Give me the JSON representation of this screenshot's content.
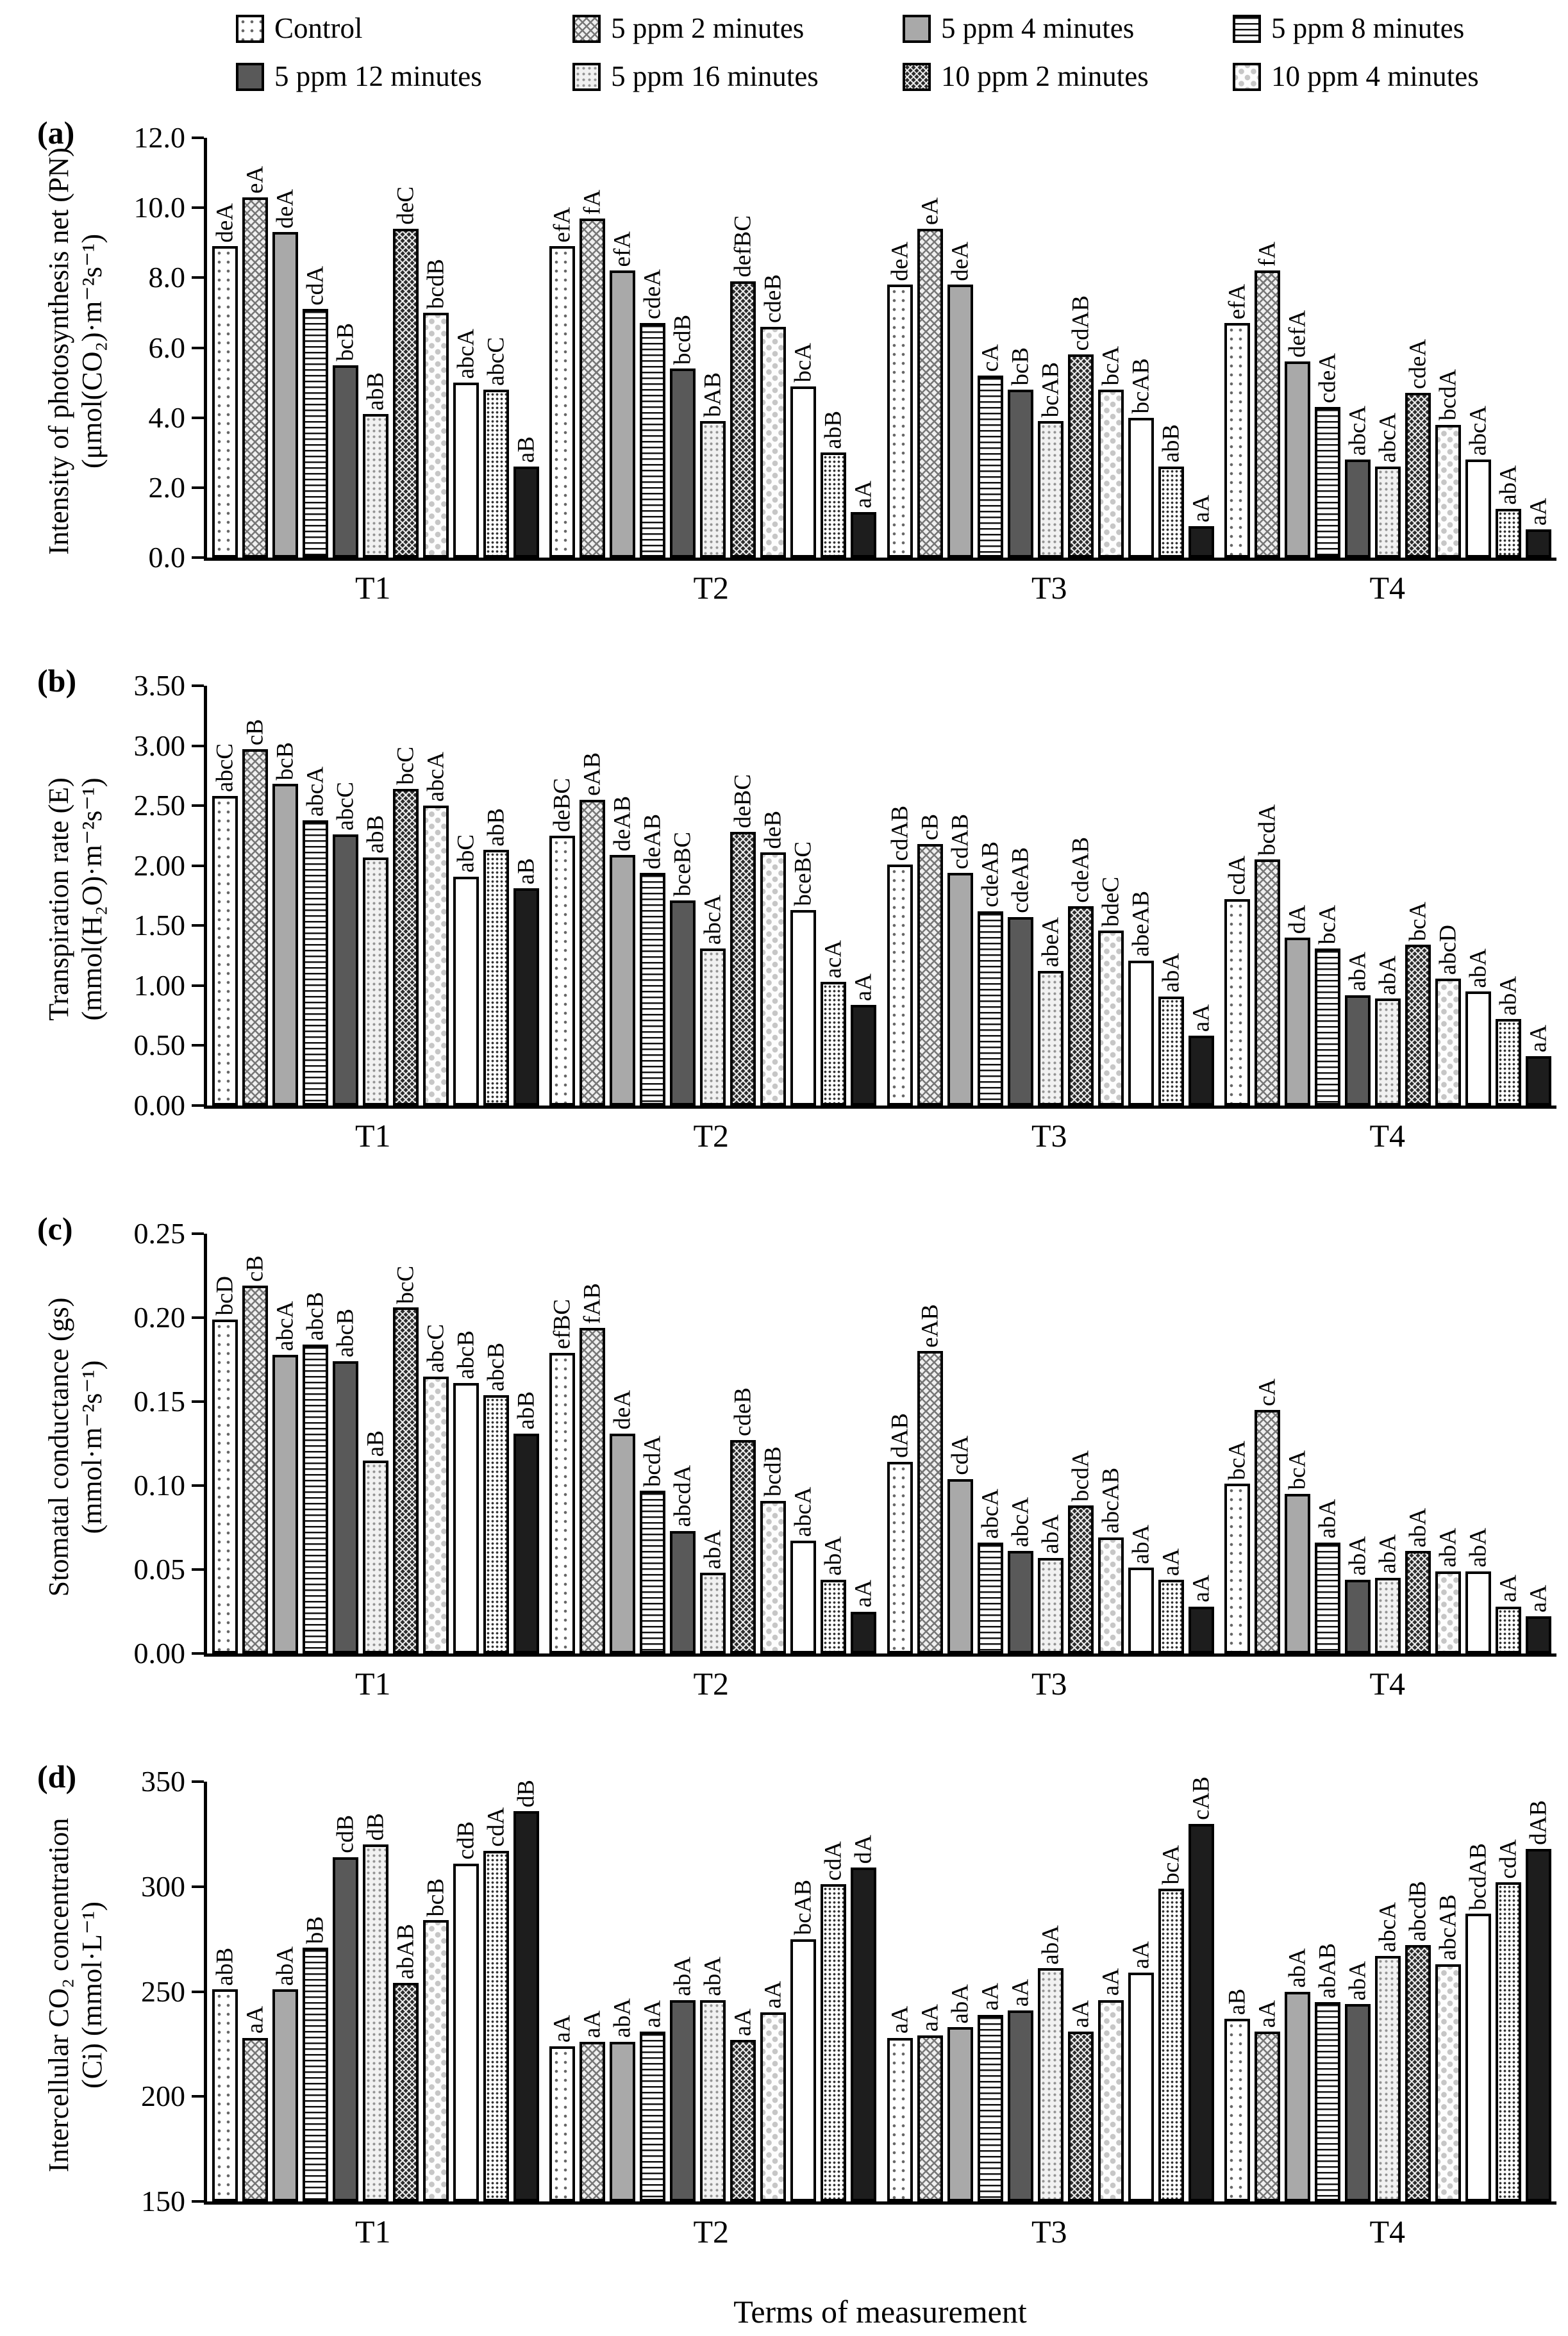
{
  "xlabel": "Terms of measurement",
  "colors": {
    "ink": "#000000",
    "background": "#ffffff"
  },
  "legend": {
    "items": [
      {
        "label": "Control",
        "pattern": "dots-sparse"
      },
      {
        "label": "5 ppm 2 minutes",
        "pattern": "crosshatch-light"
      },
      {
        "label": "5 ppm 4 minutes",
        "pattern": "solid-gray"
      },
      {
        "label": "5 ppm 8 minutes",
        "pattern": "hlines"
      },
      {
        "label": "5 ppm 12 minutes",
        "pattern": "solid-darkgray"
      },
      {
        "label": "5 ppm 16 minutes",
        "pattern": "dots-fine"
      },
      {
        "label": "10 ppm 2 minutes",
        "pattern": "crosshatch-dark"
      },
      {
        "label": "10 ppm 4 minutes",
        "pattern": "check-light"
      }
    ]
  },
  "series_defs": [
    {
      "name": "Control",
      "pattern": "dots-sparse"
    },
    {
      "name": "5 ppm 2 minutes",
      "pattern": "crosshatch-light"
    },
    {
      "name": "5 ppm 4 minutes",
      "pattern": "solid-gray"
    },
    {
      "name": "5 ppm 8 minutes",
      "pattern": "hlines"
    },
    {
      "name": "5 ppm 12 minutes",
      "pattern": "solid-darkgray"
    },
    {
      "name": "5 ppm 16 minutes",
      "pattern": "dots-fine"
    },
    {
      "name": "10 ppm 2 minutes",
      "pattern": "crosshatch-dark"
    },
    {
      "name": "10 ppm 4 minutes",
      "pattern": "check-light"
    },
    {
      "name": "",
      "pattern": "plain-white"
    },
    {
      "name": "",
      "pattern": "speckle"
    },
    {
      "name": "",
      "pattern": "solid-black"
    }
  ],
  "chart_data": [
    {
      "type": "bar",
      "panel": "(a)",
      "title": "Intensity of photosynthesis net (PN)",
      "unit": "(μmol(CO₂)·m⁻²s⁻¹)",
      "categories": [
        "T1",
        "T2",
        "T3",
        "T4"
      ],
      "ylim": [
        0,
        12
      ],
      "yticks": [
        "12.0",
        "10.0",
        "8.0",
        "6.0",
        "4.0",
        "2.0",
        "0.0"
      ],
      "series": [
        {
          "name": "Control",
          "values": [
            8.9,
            8.9,
            7.8,
            6.7
          ],
          "sig": [
            "deA",
            "efA",
            "deA",
            "efA"
          ]
        },
        {
          "name": "5 ppm 2 minutes",
          "values": [
            10.3,
            9.7,
            9.4,
            8.2
          ],
          "sig": [
            "eA",
            "fA",
            "eA",
            "fA"
          ]
        },
        {
          "name": "5 ppm 4 minutes",
          "values": [
            9.3,
            8.2,
            7.8,
            5.6
          ],
          "sig": [
            "deA",
            "efA",
            "deA",
            "defA"
          ]
        },
        {
          "name": "5 ppm 8 minutes",
          "values": [
            7.1,
            6.7,
            5.2,
            4.3
          ],
          "sig": [
            "cdA",
            "cdeA",
            "cA",
            "cdeA"
          ]
        },
        {
          "name": "5 ppm 12 minutes",
          "values": [
            5.5,
            5.4,
            4.8,
            2.8
          ],
          "sig": [
            "bcB",
            "bcdB",
            "bcB",
            "abcA"
          ]
        },
        {
          "name": "5 ppm 16 minutes",
          "values": [
            4.1,
            3.9,
            3.9,
            2.6
          ],
          "sig": [
            "abB",
            "bAB",
            "bcAB",
            "abcA"
          ]
        },
        {
          "name": "10 ppm 2 minutes",
          "values": [
            9.4,
            7.9,
            5.8,
            4.7
          ],
          "sig": [
            "deC",
            "defBC",
            "cdAB",
            "cdeA"
          ]
        },
        {
          "name": "10 ppm 4 minutes",
          "values": [
            7.0,
            6.6,
            4.8,
            3.8
          ],
          "sig": [
            "bcdB",
            "cdeB",
            "bcA",
            "bcdA"
          ]
        },
        {
          "name": "",
          "values": [
            5.0,
            4.9,
            4.0,
            2.8
          ],
          "sig": [
            "abcA",
            "bcA",
            "bcAB",
            "abcA"
          ]
        },
        {
          "name": "",
          "values": [
            4.8,
            3.0,
            2.6,
            1.4
          ],
          "sig": [
            "abcC",
            "abB",
            "abB",
            "abA"
          ]
        },
        {
          "name": "",
          "values": [
            2.6,
            1.3,
            0.9,
            0.8
          ],
          "sig": [
            "aB",
            "aA",
            "aA",
            "aA"
          ]
        }
      ]
    },
    {
      "type": "bar",
      "panel": "(b)",
      "title": "Transpiration rate (E)",
      "unit": "(mmol(H₂O)·m⁻²s⁻¹)",
      "categories": [
        "T1",
        "T2",
        "T3",
        "T4"
      ],
      "ylim": [
        0,
        3.5
      ],
      "yticks": [
        "3.50",
        "3.00",
        "2.50",
        "2.00",
        "1.50",
        "1.00",
        "0.50",
        "0.00"
      ],
      "series": [
        {
          "name": "Control",
          "values": [
            2.58,
            2.25,
            2.01,
            1.72
          ],
          "sig": [
            "abcC",
            "deBC",
            "cdAB",
            "cdA"
          ]
        },
        {
          "name": "5 ppm 2 minutes",
          "values": [
            2.97,
            2.55,
            2.18,
            2.05
          ],
          "sig": [
            "cB",
            "eAB",
            "cB",
            "bcdA"
          ]
        },
        {
          "name": "5 ppm 4 minutes",
          "values": [
            2.68,
            2.09,
            1.94,
            1.4
          ],
          "sig": [
            "bcB",
            "deAB",
            "cdAB",
            "dA"
          ]
        },
        {
          "name": "5 ppm 8 minutes",
          "values": [
            2.38,
            1.94,
            1.62,
            1.31
          ],
          "sig": [
            "abcA",
            "deAB",
            "cdeAB",
            "bcA"
          ]
        },
        {
          "name": "5 ppm 12 minutes",
          "values": [
            2.26,
            1.71,
            1.57,
            0.92
          ],
          "sig": [
            "abcC",
            "bceBC",
            "cdeAB",
            "abA"
          ]
        },
        {
          "name": "5 ppm 16 minutes",
          "values": [
            2.07,
            1.31,
            1.12,
            0.89
          ],
          "sig": [
            "abB",
            "abcA",
            "abeA",
            "abA"
          ]
        },
        {
          "name": "10 ppm 2 minutes",
          "values": [
            2.64,
            2.28,
            1.66,
            1.34
          ],
          "sig": [
            "bcC",
            "deBC",
            "cdeAB",
            "bcA"
          ]
        },
        {
          "name": "10 ppm 4 minutes",
          "values": [
            2.5,
            2.11,
            1.46,
            1.06
          ],
          "sig": [
            "abcA",
            "deB",
            "bdeC",
            "abcD"
          ]
        },
        {
          "name": "",
          "values": [
            1.91,
            1.63,
            1.21,
            0.95
          ],
          "sig": [
            "abC",
            "bceBC",
            "abeAB",
            "abA"
          ]
        },
        {
          "name": "",
          "values": [
            2.13,
            1.03,
            0.91,
            0.72
          ],
          "sig": [
            "abB",
            "acA",
            "abA",
            "abA"
          ]
        },
        {
          "name": "",
          "values": [
            1.81,
            0.84,
            0.58,
            0.41
          ],
          "sig": [
            "aB",
            "aA",
            "aA",
            "aA"
          ]
        }
      ]
    },
    {
      "type": "bar",
      "panel": "(c)",
      "title": "Stomatal conductance (gs)",
      "unit": "(mmol·m⁻²s⁻¹)",
      "categories": [
        "T1",
        "T2",
        "T3",
        "T4"
      ],
      "ylim": [
        0,
        0.25
      ],
      "yticks": [
        "0.25",
        "0.20",
        "0.15",
        "0.10",
        "0.05",
        "0.00"
      ],
      "series": [
        {
          "name": "Control",
          "values": [
            0.199,
            0.179,
            0.114,
            0.101
          ],
          "sig": [
            "bcD",
            "efBC",
            "dAB",
            "bcA"
          ]
        },
        {
          "name": "5 ppm 2 minutes",
          "values": [
            0.219,
            0.194,
            0.18,
            0.145
          ],
          "sig": [
            "cB",
            "fAB",
            "eAB",
            "cA"
          ]
        },
        {
          "name": "5 ppm 4 minutes",
          "values": [
            0.178,
            0.131,
            0.104,
            0.095
          ],
          "sig": [
            "abcA",
            "deA",
            "cdA",
            "bcA"
          ]
        },
        {
          "name": "5 ppm 8 minutes",
          "values": [
            0.184,
            0.097,
            0.066,
            0.066
          ],
          "sig": [
            "abcB",
            "bcdA",
            "abcA",
            "abA"
          ]
        },
        {
          "name": "5 ppm 12 minutes",
          "values": [
            0.174,
            0.073,
            0.061,
            0.044
          ],
          "sig": [
            "abcB",
            "abcdA",
            "abcA",
            "abA"
          ]
        },
        {
          "name": "5 ppm 16 minutes",
          "values": [
            0.115,
            0.048,
            0.057,
            0.045
          ],
          "sig": [
            "aB",
            "abA",
            "abA",
            "abA"
          ]
        },
        {
          "name": "10 ppm 2 minutes",
          "values": [
            0.206,
            0.127,
            0.088,
            0.061
          ],
          "sig": [
            "bcC",
            "cdeB",
            "bcdA",
            "abA"
          ]
        },
        {
          "name": "10 ppm 4 minutes",
          "values": [
            0.165,
            0.091,
            0.069,
            0.049
          ],
          "sig": [
            "abcC",
            "bcdB",
            "abcAB",
            "abA"
          ]
        },
        {
          "name": "",
          "values": [
            0.161,
            0.067,
            0.051,
            0.049
          ],
          "sig": [
            "abcB",
            "abcA",
            "abA",
            "abA"
          ]
        },
        {
          "name": "",
          "values": [
            0.154,
            0.044,
            0.044,
            0.028
          ],
          "sig": [
            "abcB",
            "abA",
            "aA",
            "aA"
          ]
        },
        {
          "name": "",
          "values": [
            0.131,
            0.025,
            0.028,
            0.022
          ],
          "sig": [
            "abB",
            "aA",
            "aA",
            "aA"
          ]
        }
      ]
    },
    {
      "type": "bar",
      "panel": "(d)",
      "title": "Intercellular CO₂ concentration",
      "unit": "(Ci) (mmol·L⁻¹)",
      "categories": [
        "T1",
        "T2",
        "T3",
        "T4"
      ],
      "ylim": [
        150,
        350
      ],
      "yticks": [
        "350",
        "300",
        "250",
        "200",
        "150"
      ],
      "series": [
        {
          "name": "Control",
          "values": [
            251,
            224,
            228,
            237
          ],
          "sig": [
            "abB",
            "aA",
            "aA",
            "aB"
          ]
        },
        {
          "name": "5 ppm 2 minutes",
          "values": [
            228,
            226,
            229,
            231
          ],
          "sig": [
            "aA",
            "aA",
            "aA",
            "aA"
          ]
        },
        {
          "name": "5 ppm 4 minutes",
          "values": [
            251,
            226,
            233,
            250
          ],
          "sig": [
            "abA",
            "abA",
            "abA",
            "abA"
          ]
        },
        {
          "name": "5 ppm 8 minutes",
          "values": [
            271,
            231,
            239,
            245
          ],
          "sig": [
            "bB",
            "aA",
            "aA",
            "abAB"
          ]
        },
        {
          "name": "5 ppm 12 minutes",
          "values": [
            314,
            246,
            241,
            244
          ],
          "sig": [
            "cdB",
            "abA",
            "aA",
            "abA"
          ]
        },
        {
          "name": "5 ppm 16 minutes",
          "values": [
            320,
            246,
            261,
            267
          ],
          "sig": [
            "dB",
            "abA",
            "abA",
            "abcA"
          ]
        },
        {
          "name": "10 ppm 2 minutes",
          "values": [
            254,
            227,
            231,
            272
          ],
          "sig": [
            "abAB",
            "aA",
            "aA",
            "abcdB"
          ]
        },
        {
          "name": "10 ppm 4 minutes",
          "values": [
            284,
            240,
            246,
            263
          ],
          "sig": [
            "bcB",
            "aA",
            "aA",
            "abcAB"
          ]
        },
        {
          "name": "",
          "values": [
            311,
            275,
            259,
            287
          ],
          "sig": [
            "cdB",
            "bcAB",
            "aA",
            "bcdAB"
          ]
        },
        {
          "name": "",
          "values": [
            317,
            301,
            299,
            302
          ],
          "sig": [
            "cdA",
            "cdA",
            "bcA",
            "cdA"
          ]
        },
        {
          "name": "",
          "values": [
            336,
            309,
            330,
            318
          ],
          "sig": [
            "dB",
            "dA",
            "cAB",
            "dAB"
          ]
        }
      ]
    }
  ]
}
